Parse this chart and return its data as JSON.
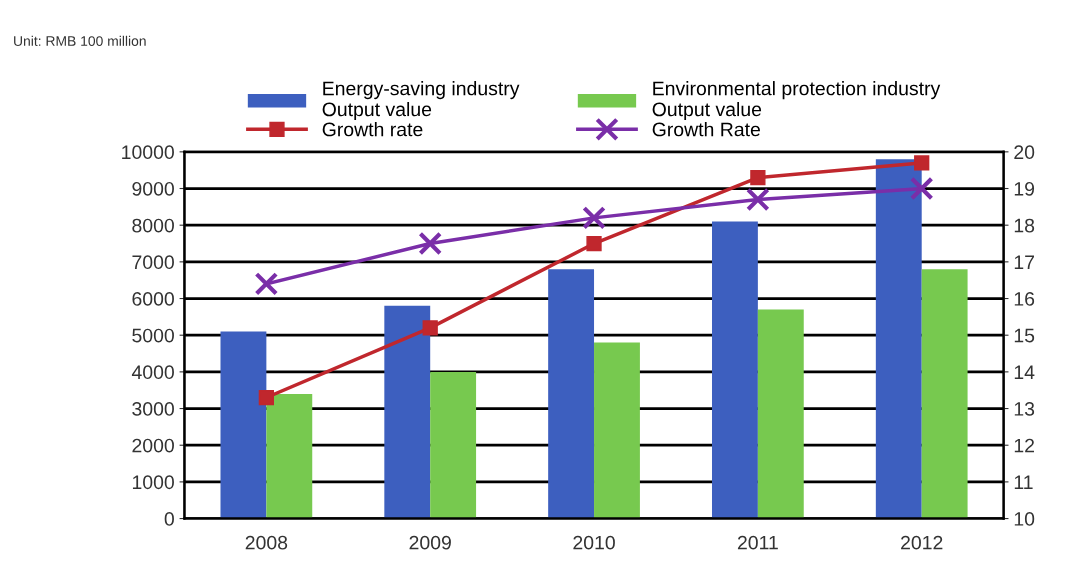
{
  "chart_data": {
    "type": "bar",
    "annotations": [
      "Unit: RMB 100 million"
    ],
    "categories": [
      "2008",
      "2009",
      "2010",
      "2011",
      "2012"
    ],
    "series": [
      {
        "name": "Energy-saving industry\nOutput value",
        "color": "#3d5fbf",
        "values": [
          5100,
          5800,
          6800,
          8100,
          9800
        ]
      },
      {
        "name": "Growth rate",
        "type": "line",
        "axis": "y2",
        "marker": "square",
        "color": "#c0272d",
        "values": [
          13.3,
          15.2,
          17.5,
          19.3,
          19.7
        ]
      },
      {
        "name": "Environmental protection industry\nOutput value",
        "color": "#77c94f",
        "values": [
          3400,
          4000,
          4800,
          5700,
          6800
        ]
      },
      {
        "name": "Growth Rate",
        "type": "line",
        "axis": "y2",
        "marker": "cross",
        "color": "#7a2ea8",
        "values": [
          16.4,
          17.5,
          18.2,
          18.7,
          19.0
        ]
      }
    ],
    "ylim": [
      0,
      10000
    ],
    "yticks": [
      0,
      1000,
      2000,
      3000,
      4000,
      5000,
      6000,
      7000,
      8000,
      9000,
      10000
    ],
    "y2lim": [
      10,
      20
    ],
    "y2ticks": [
      10,
      11,
      12,
      13,
      14,
      15,
      16,
      17,
      18,
      19,
      20
    ],
    "grid": "y",
    "legend": "top"
  }
}
